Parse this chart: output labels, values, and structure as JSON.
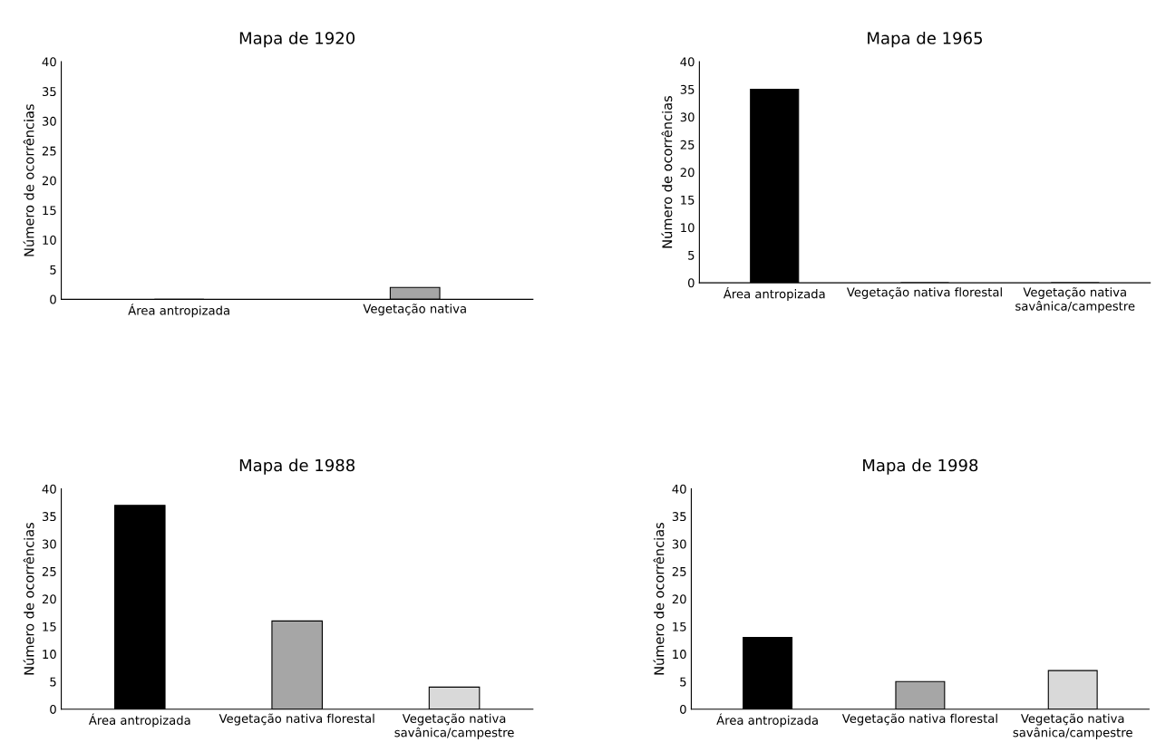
{
  "chart_data": [
    {
      "type": "bar",
      "title": "Mapa de 1920",
      "ylabel": "Número de ocorrências",
      "categories": [
        "Área antropizada",
        "Vegetação nativa"
      ],
      "values": [
        0,
        2
      ],
      "colors": [
        "#000000",
        "#a6a6a6"
      ],
      "ylim": [
        0,
        40
      ],
      "yticks": [
        0,
        5,
        10,
        15,
        20,
        25,
        30,
        35,
        40
      ],
      "grid": false,
      "legend": false
    },
    {
      "type": "bar",
      "title": "Mapa de 1965",
      "ylabel": "Número de ocorrências",
      "categories": [
        "Área antropizada",
        "Vegetação nativa florestal",
        "Vegetação nativa\nsavânica/campestre"
      ],
      "values": [
        35,
        0,
        0
      ],
      "colors": [
        "#000000",
        "#a6a6a6",
        "#d9d9d9"
      ],
      "ylim": [
        0,
        40
      ],
      "yticks": [
        0,
        5,
        10,
        15,
        20,
        25,
        30,
        35,
        40
      ],
      "grid": false,
      "legend": false
    },
    {
      "type": "bar",
      "title": "Mapa de 1988",
      "ylabel": "Número de ocorrências",
      "categories": [
        "Área antropizada",
        "Vegetação nativa florestal",
        "Vegetação nativa\nsavânica/campestre"
      ],
      "values": [
        37,
        16,
        4
      ],
      "colors": [
        "#000000",
        "#a6a6a6",
        "#d9d9d9"
      ],
      "ylim": [
        0,
        40
      ],
      "yticks": [
        0,
        5,
        10,
        15,
        20,
        25,
        30,
        35,
        40
      ],
      "grid": false,
      "legend": false
    },
    {
      "type": "bar",
      "title": "Mapa de 1998",
      "ylabel": "Número de ocorrências",
      "categories": [
        "Área antropizada",
        "Vegetação nativa florestal",
        "Vegetação nativa\nsavânica/campestre"
      ],
      "values": [
        13,
        5,
        7
      ],
      "colors": [
        "#000000",
        "#a6a6a6",
        "#d9d9d9"
      ],
      "ylim": [
        0,
        40
      ],
      "yticks": [
        0,
        5,
        10,
        15,
        20,
        25,
        30,
        35,
        40
      ],
      "grid": false,
      "legend": false
    }
  ]
}
